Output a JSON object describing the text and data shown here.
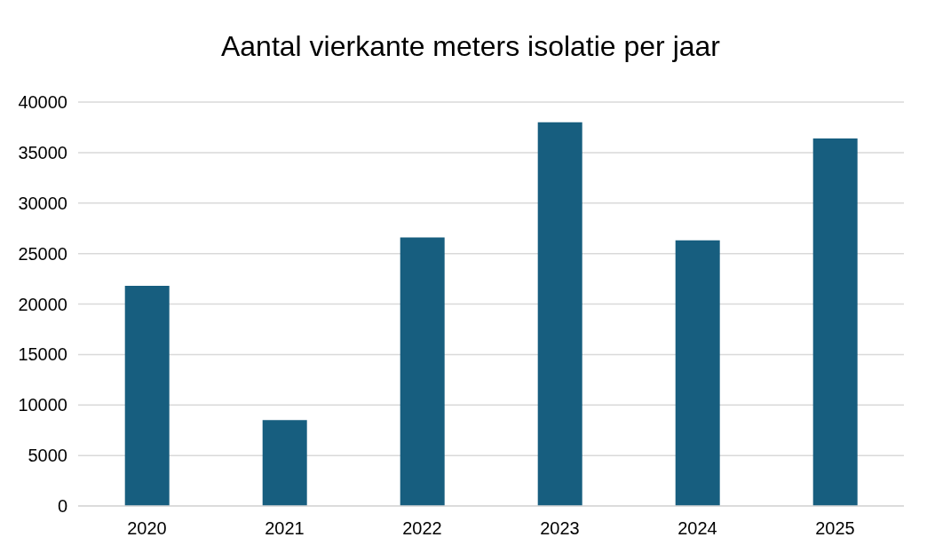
{
  "chart_data": {
    "type": "bar",
    "title": "Aantal vierkante meters isolatie per jaar",
    "categories": [
      "2020",
      "2021",
      "2022",
      "2023",
      "2024",
      "2025"
    ],
    "values": [
      21800,
      8500,
      26600,
      38000,
      26300,
      36400
    ],
    "color": "#175e7f",
    "ylim": [
      0,
      40000
    ],
    "yticks": [
      0,
      5000,
      10000,
      15000,
      20000,
      25000,
      30000,
      35000,
      40000
    ],
    "grid": "y"
  }
}
